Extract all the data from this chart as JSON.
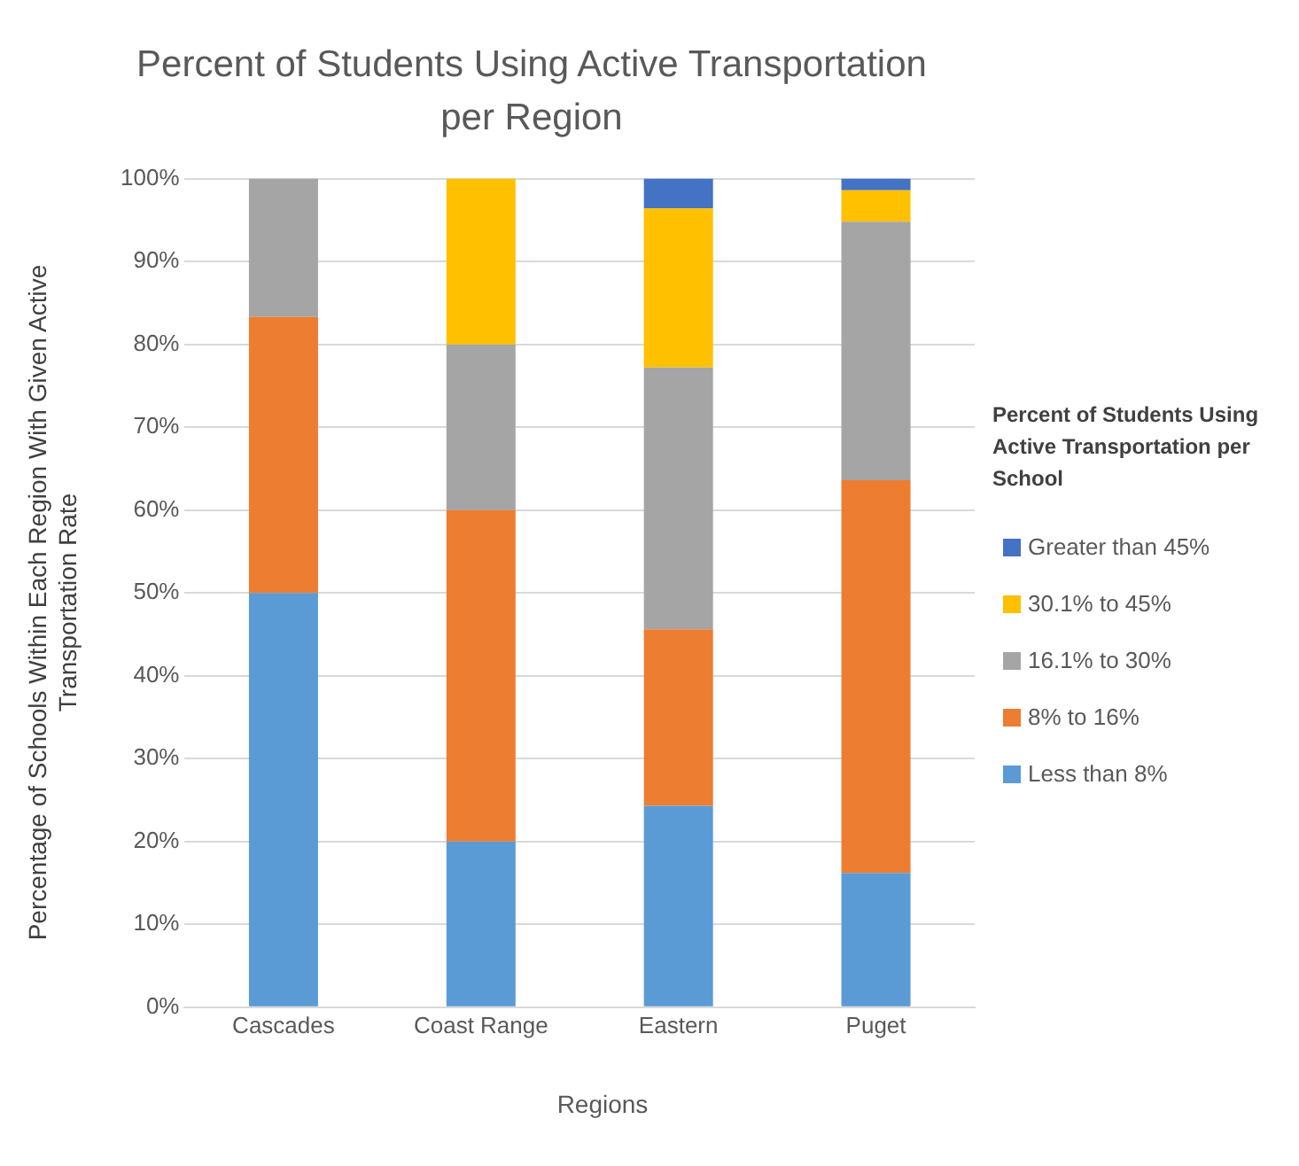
{
  "chart_data": {
    "type": "bar",
    "title": "Percent of Students Using Active Transportation per Region",
    "xlabel": "Regions",
    "ylabel": "Percentage of Schools Within Each Region  With Given Active Transportation Rate",
    "legend_title": "Percent of Students Using Active Transportation per School",
    "categories": [
      "Cascades",
      "Coast Range",
      "Eastern",
      "Puget"
    ],
    "series": [
      {
        "name": "Less than 8%",
        "color": "#5b9bd5",
        "values": [
          50,
          20,
          24.3,
          16.2
        ]
      },
      {
        "name": "8% to 16%",
        "color": "#ed7d31",
        "values": [
          33.3,
          40,
          21.3,
          47.4
        ]
      },
      {
        "name": "16.1% to 30%",
        "color": "#a5a5a5",
        "values": [
          16.7,
          20,
          31.6,
          31.2
        ]
      },
      {
        "name": "30.1% to 45%",
        "color": "#ffc000",
        "values": [
          0,
          20,
          19.2,
          3.8
        ]
      },
      {
        "name": "Greater than 45%",
        "color": "#4472c4",
        "values": [
          0,
          0,
          3.6,
          1.4
        ]
      }
    ],
    "stacked": true,
    "ylim": [
      0,
      100
    ],
    "yticks": [
      {
        "value": 0,
        "label": "0%"
      },
      {
        "value": 10,
        "label": "10%"
      },
      {
        "value": 20,
        "label": "20%"
      },
      {
        "value": 30,
        "label": "30%"
      },
      {
        "value": 40,
        "label": "40%"
      },
      {
        "value": 50,
        "label": "50%"
      },
      {
        "value": 60,
        "label": "60%"
      },
      {
        "value": 70,
        "label": "70%"
      },
      {
        "value": 80,
        "label": "80%"
      },
      {
        "value": 90,
        "label": "90%"
      },
      {
        "value": 100,
        "label": "100%"
      }
    ],
    "grid": "y",
    "legend": "right"
  }
}
